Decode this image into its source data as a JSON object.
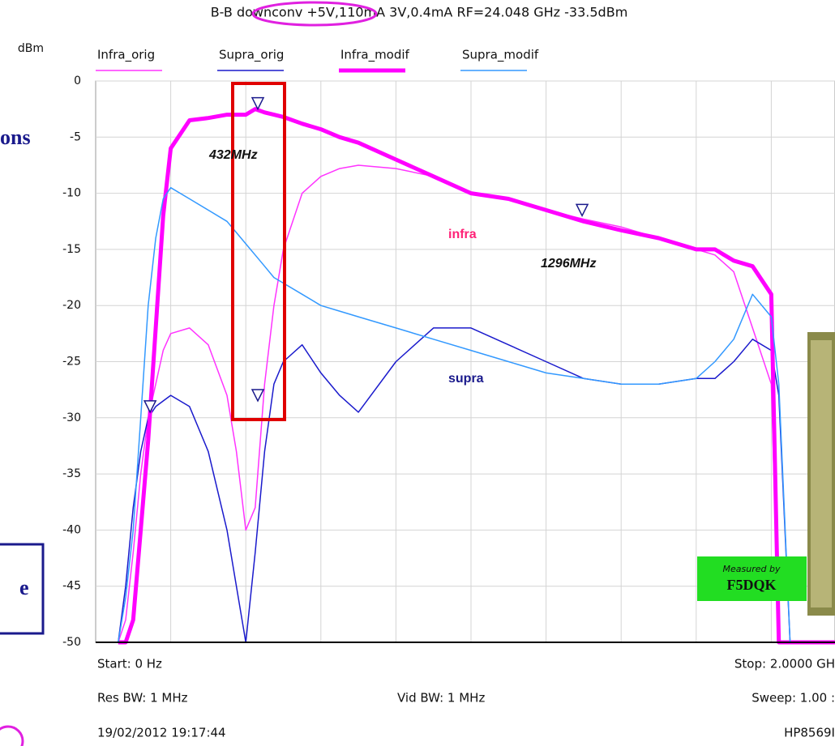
{
  "chart_data": {
    "type": "line",
    "title": "B-B downconv +5V,110mA 3V,0.4mA RF=24.048 GHz -33.5dBm",
    "y_label": "dBm",
    "x": [
      60,
      80,
      100,
      120,
      140,
      160,
      180,
      200,
      250,
      300,
      350,
      375,
      400,
      425,
      450,
      475,
      500,
      550,
      600,
      650,
      700,
      800,
      900,
      1000,
      1100,
      1200,
      1300,
      1400,
      1500,
      1600,
      1650,
      1700,
      1750,
      1800,
      1820,
      1850,
      1900,
      2000
    ],
    "series": [
      {
        "name": "Infra_orig",
        "color": "#ff33ff",
        "line_width": 1.5,
        "values": [
          -50,
          -48,
          -42,
          -35,
          -30,
          -27,
          -24,
          -22.5,
          -22,
          -23.5,
          -28,
          -33,
          -40,
          -38,
          -27,
          -20,
          -15,
          -10,
          -8.5,
          -7.8,
          -7.5,
          -7.8,
          -8.5,
          -10,
          -10.5,
          -11.5,
          -12.3,
          -13,
          -14,
          -15,
          -15.5,
          -17,
          -22,
          -27,
          -50,
          -50,
          -50,
          -50
        ]
      },
      {
        "name": "Supra_orig",
        "color": "#1a1acc",
        "line_width": 1.5,
        "values": [
          -50,
          -45,
          -38,
          -33,
          -30,
          -29,
          -28.5,
          -28,
          -29,
          -33,
          -40,
          -45,
          -50,
          -42,
          -33,
          -27,
          -25,
          -23.5,
          -26,
          -28,
          -29.5,
          -25,
          -22,
          -22,
          -23.5,
          -25,
          -26.5,
          -27,
          -27,
          -26.5,
          -26.5,
          -25,
          -23,
          -24,
          -28,
          -50,
          -50,
          -50
        ]
      },
      {
        "name": "Infra_modif",
        "color": "#ff00ff",
        "line_width": 5,
        "values": [
          -50,
          -50,
          -48,
          -40,
          -32,
          -22,
          -12,
          -6,
          -3.5,
          -3.3,
          -3,
          -3,
          -3,
          -2.5,
          -2.8,
          -3,
          -3.2,
          -3.8,
          -4.3,
          -5,
          -5.5,
          -7,
          -8.5,
          -10,
          -10.5,
          -11.5,
          -12.5,
          -13.3,
          -14,
          -15,
          -15,
          -16,
          -16.5,
          -19,
          -50,
          -50,
          -50,
          -50
        ]
      },
      {
        "name": "Supra_modif",
        "color": "#3399ff",
        "line_width": 1.5,
        "values": [
          -50,
          -46,
          -40,
          -30,
          -20,
          -14,
          -10.5,
          -9.5,
          -10.5,
          -11.5,
          -12.5,
          -13.5,
          -14.5,
          -15.5,
          -16.5,
          -17.5,
          -18,
          -19,
          -20,
          -20.5,
          -21,
          -22,
          -23,
          -24,
          -25,
          -26,
          -26.5,
          -27,
          -27,
          -26.5,
          -25,
          -23,
          -19,
          -21,
          -27,
          -50,
          -50,
          -50
        ]
      }
    ],
    "markers": [
      {
        "x": 432,
        "y": -2.5
      },
      {
        "x": 432,
        "y": -28.5
      },
      {
        "x": 1296,
        "y": -12
      },
      {
        "x": 145,
        "y": -29.5
      }
    ],
    "xlim": [
      0,
      2000
    ],
    "ylim": [
      -50,
      0
    ],
    "yticks": [
      0,
      -5,
      -10,
      -15,
      -20,
      -25,
      -30,
      -35,
      -40,
      -45,
      -50
    ],
    "grid": true,
    "annotations": [
      "432MHz",
      "1296MHz",
      "infra",
      "supra"
    ],
    "footer": [
      "Start: 0 Hz",
      "Stop: 2.0000 GH",
      "Res BW: 1 MHz",
      "Vid BW: 1 MHz",
      "Sweep: 1.00 :",
      "19/02/2012 19:17:44",
      "HP8569I"
    ],
    "fragments": [
      "ons",
      "e"
    ],
    "stamp": [
      "Measured by",
      "F5DQK"
    ]
  }
}
